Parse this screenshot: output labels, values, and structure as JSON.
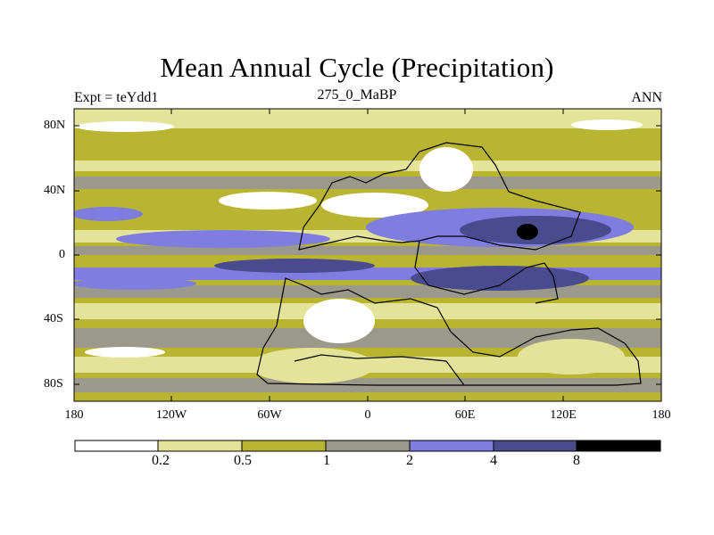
{
  "title": "Mean Annual Cycle (Precipitation)",
  "subtitle_left": "Expt = teYdd1",
  "subtitle_center": "275_0_MaBP",
  "subtitle_right": "ANN",
  "y_axis_labels": [
    "80N",
    "40N",
    "0",
    "40S",
    "80S"
  ],
  "x_axis_labels": [
    "180",
    "120W",
    "60W",
    "0",
    "60E",
    "120E",
    "180"
  ],
  "colorbar": {
    "levels": [
      "0.2",
      "0.5",
      "1",
      "2",
      "4",
      "8"
    ],
    "colors": [
      "#ffffff",
      "#e4e39a",
      "#b9b532",
      "#9b9a8a",
      "#7f7de0",
      "#4a4a8e",
      "#000000"
    ]
  },
  "map_colors": {
    "white": "#ffffff",
    "pale": "#e4e39a",
    "olive": "#b9b532",
    "gray": "#9b9a8a",
    "blue": "#7f7de0",
    "navy": "#4a4a8e",
    "black": "#000000"
  }
}
